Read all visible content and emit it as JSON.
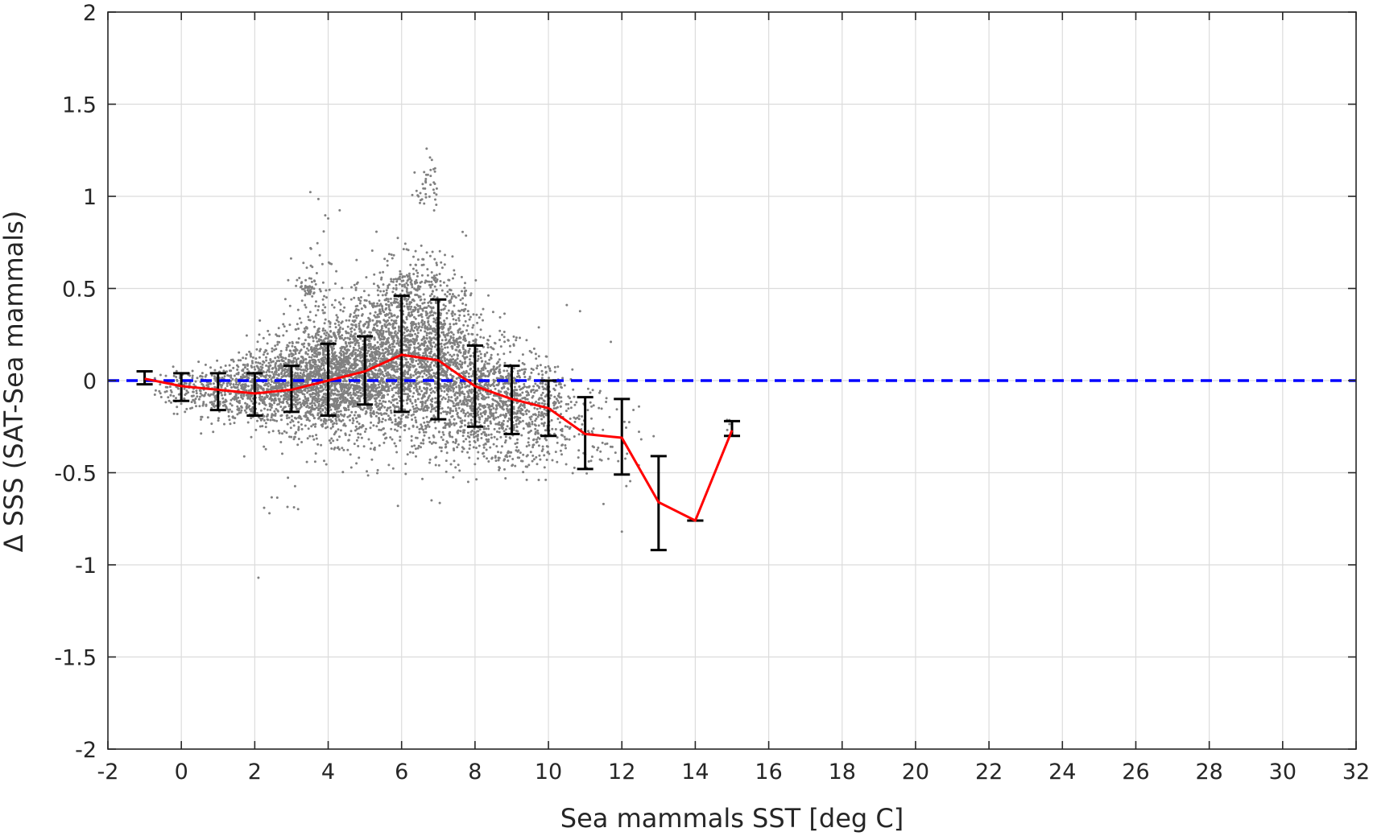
{
  "chart_data": {
    "type": "scatter",
    "xlabel": "Sea mammals SST [deg C]",
    "ylabel": "Δ SSS (SAT-Sea mammals)",
    "xlim": [
      -2,
      32
    ],
    "ylim": [
      -2,
      2
    ],
    "xticks": [
      -2,
      0,
      2,
      4,
      6,
      8,
      10,
      12,
      14,
      16,
      18,
      20,
      22,
      24,
      26,
      28,
      30,
      32
    ],
    "yticks": [
      -2,
      -1.5,
      -1,
      -0.5,
      0,
      0.5,
      1,
      1.5,
      2
    ],
    "xtick_labels": [
      "-2",
      "0",
      "2",
      "4",
      "6",
      "8",
      "10",
      "12",
      "14",
      "16",
      "18",
      "20",
      "22",
      "24",
      "26",
      "28",
      "30",
      "32"
    ],
    "ytick_labels": [
      "-2",
      "-1.5",
      "-1",
      "-0.5",
      "0",
      "0.5",
      "1",
      "1.5",
      "2"
    ],
    "grid": true,
    "colors": {
      "scatter": "#808080",
      "mean_line": "#ff0000",
      "error_bars": "#000000",
      "zero_line": "#0000ff",
      "grid": "#dcdcdc",
      "axes": "#262626"
    },
    "zero_line": {
      "y": 0,
      "style": "dashed"
    },
    "series": [
      {
        "type": "line",
        "x": [
          -1,
          0,
          1,
          2,
          3,
          4,
          5,
          6,
          7,
          8,
          9,
          10,
          11,
          12,
          13,
          14,
          15
        ],
        "y": [
          0.01,
          -0.03,
          -0.05,
          -0.07,
          -0.05,
          0.0,
          0.05,
          0.14,
          0.11,
          -0.03,
          -0.1,
          -0.15,
          -0.29,
          -0.31,
          -0.66,
          -0.76,
          -0.27
        ]
      },
      {
        "type": "errorbar",
        "x": [
          -1,
          0,
          1,
          2,
          3,
          4,
          5,
          6,
          7,
          8,
          9,
          10,
          11,
          12,
          13,
          14,
          15
        ],
        "upper": [
          0.05,
          0.04,
          0.04,
          0.04,
          0.08,
          0.2,
          0.24,
          0.46,
          0.44,
          0.19,
          0.08,
          0.0,
          -0.09,
          -0.1,
          -0.41,
          -0.76,
          -0.22
        ],
        "lower": [
          -0.02,
          -0.11,
          -0.16,
          -0.19,
          -0.17,
          -0.19,
          -0.13,
          -0.17,
          -0.21,
          -0.25,
          -0.29,
          -0.3,
          -0.48,
          -0.51,
          -0.92,
          -0.76,
          -0.3
        ]
      }
    ],
    "scatter_clusters": [
      {
        "x": 0.0,
        "y": -0.05,
        "sx": 0.35,
        "sy": 0.05,
        "n": 90
      },
      {
        "x": 1.0,
        "y": -0.05,
        "sx": 0.45,
        "sy": 0.07,
        "n": 200
      },
      {
        "x": 2.0,
        "y": -0.05,
        "sx": 0.5,
        "sy": 0.09,
        "n": 380
      },
      {
        "x": 3.0,
        "y": -0.02,
        "sx": 0.55,
        "sy": 0.12,
        "n": 650
      },
      {
        "x": 4.0,
        "y": 0.01,
        "sx": 0.55,
        "sy": 0.15,
        "n": 900
      },
      {
        "x": 5.0,
        "y": 0.06,
        "sx": 0.55,
        "sy": 0.18,
        "n": 950
      },
      {
        "x": 6.0,
        "y": 0.14,
        "sx": 0.55,
        "sy": 0.22,
        "n": 900
      },
      {
        "x": 7.0,
        "y": 0.08,
        "sx": 0.55,
        "sy": 0.22,
        "n": 800
      },
      {
        "x": 8.0,
        "y": -0.05,
        "sx": 0.55,
        "sy": 0.17,
        "n": 600
      },
      {
        "x": 9.0,
        "y": -0.12,
        "sx": 0.5,
        "sy": 0.15,
        "n": 420
      },
      {
        "x": 10.0,
        "y": -0.18,
        "sx": 0.45,
        "sy": 0.13,
        "n": 200
      },
      {
        "x": 11.0,
        "y": -0.27,
        "sx": 0.35,
        "sy": 0.12,
        "n": 60
      },
      {
        "x": 12.0,
        "y": -0.3,
        "sx": 0.35,
        "sy": 0.12,
        "n": 22
      },
      {
        "x": 3.6,
        "y": 0.38,
        "sx": 0.35,
        "sy": 0.25,
        "n": 90
      },
      {
        "x": 6.6,
        "y": 0.5,
        "sx": 0.6,
        "sy": 0.12,
        "n": 110
      },
      {
        "x": 6.7,
        "y": 1.06,
        "sx": 0.15,
        "sy": 0.08,
        "n": 40
      },
      {
        "x": 3.5,
        "y": 0.5,
        "sx": 0.15,
        "sy": 0.02,
        "n": 40
      },
      {
        "x": 6.2,
        "y": 0.54,
        "sx": 0.25,
        "sy": 0.02,
        "n": 30
      },
      {
        "x": 9.0,
        "y": -0.42,
        "sx": 0.7,
        "sy": 0.03,
        "n": 50
      },
      {
        "x": 2.6,
        "y": -0.62,
        "sx": 0.3,
        "sy": 0.06,
        "n": 8
      },
      {
        "x": 4.6,
        "y": -0.45,
        "sx": 0.5,
        "sy": 0.06,
        "n": 10
      },
      {
        "x": 14.9,
        "y": -0.22,
        "sx": 0.1,
        "sy": 0.02,
        "n": 4
      }
    ],
    "scatter_outliers": [
      [
        2.1,
        -1.07
      ],
      [
        2.4,
        -0.72
      ],
      [
        5.9,
        -0.68
      ],
      [
        12.0,
        -0.82
      ],
      [
        11.5,
        -0.67
      ],
      [
        4.0,
        0.88
      ],
      [
        10.5,
        0.41
      ],
      [
        11.7,
        0.21
      ],
      [
        -0.2,
        -0.18
      ],
      [
        0.1,
        -0.17
      ]
    ]
  }
}
